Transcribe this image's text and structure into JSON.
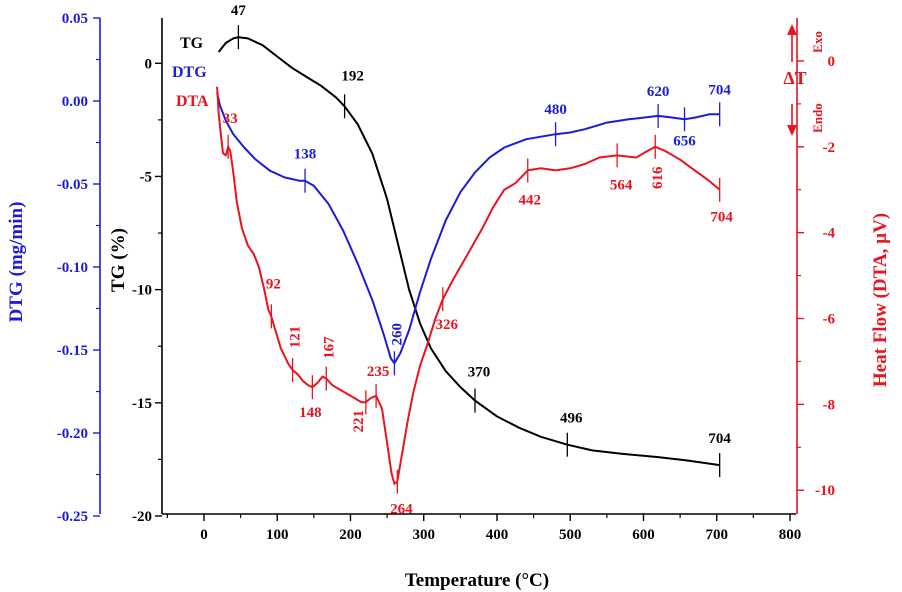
{
  "chart_data": {
    "type": "line",
    "xlabel": "Temperature (°C)",
    "xlim": [
      -60,
      800
    ],
    "xticks": [
      0,
      100,
      200,
      300,
      400,
      500,
      600,
      700,
      800
    ],
    "axes": {
      "tg": {
        "label": "TG  (%)",
        "ylim": [
          -20,
          2
        ],
        "ticks": [
          0,
          -5,
          -10,
          -15,
          -20
        ],
        "color": "#000000"
      },
      "dtg": {
        "label": "DTG (mg/min)",
        "ylim": [
          -0.25,
          0.05
        ],
        "ticks": [
          "0.05",
          "0.00",
          "-0.05",
          "-0.10",
          "-0.15",
          "-0.20",
          "-0.25"
        ],
        "color": "#1c1cd6"
      },
      "dta": {
        "label": "Heat Flow (DTA, µV)",
        "ylim": [
          -10.6,
          1.0
        ],
        "ticks": [
          0,
          -2,
          -4,
          -6,
          -8,
          -10
        ],
        "color": "#e8141e"
      }
    },
    "exo_label": "Exo",
    "endo_label": "Endo",
    "delta_label": "ΔT",
    "series": [
      {
        "name": "TG",
        "axis": "tg",
        "color": "#000000",
        "points": [
          [
            20,
            0.5
          ],
          [
            30,
            0.9
          ],
          [
            40,
            1.1
          ],
          [
            47,
            1.15
          ],
          [
            60,
            1.1
          ],
          [
            80,
            0.8
          ],
          [
            100,
            0.3
          ],
          [
            120,
            -0.2
          ],
          [
            140,
            -0.6
          ],
          [
            160,
            -1.0
          ],
          [
            180,
            -1.5
          ],
          [
            192,
            -1.9
          ],
          [
            210,
            -2.7
          ],
          [
            230,
            -4.0
          ],
          [
            250,
            -6.0
          ],
          [
            265,
            -8.0
          ],
          [
            280,
            -10.0
          ],
          [
            295,
            -11.5
          ],
          [
            310,
            -12.6
          ],
          [
            330,
            -13.6
          ],
          [
            350,
            -14.3
          ],
          [
            370,
            -14.9
          ],
          [
            400,
            -15.6
          ],
          [
            430,
            -16.1
          ],
          [
            460,
            -16.5
          ],
          [
            496,
            -16.85
          ],
          [
            530,
            -17.1
          ],
          [
            570,
            -17.25
          ],
          [
            620,
            -17.4
          ],
          [
            660,
            -17.55
          ],
          [
            704,
            -17.75
          ]
        ]
      },
      {
        "name": "DTG",
        "axis": "dtg",
        "color": "#1c1cd6",
        "points": [
          [
            18,
            0.005
          ],
          [
            22,
            -0.003
          ],
          [
            30,
            -0.012
          ],
          [
            40,
            -0.02
          ],
          [
            55,
            -0.028
          ],
          [
            70,
            -0.035
          ],
          [
            90,
            -0.042
          ],
          [
            110,
            -0.046
          ],
          [
            130,
            -0.048
          ],
          [
            138,
            -0.048
          ],
          [
            150,
            -0.051
          ],
          [
            170,
            -0.062
          ],
          [
            190,
            -0.078
          ],
          [
            210,
            -0.098
          ],
          [
            230,
            -0.12
          ],
          [
            245,
            -0.14
          ],
          [
            255,
            -0.155
          ],
          [
            260,
            -0.158
          ],
          [
            268,
            -0.152
          ],
          [
            280,
            -0.138
          ],
          [
            295,
            -0.115
          ],
          [
            310,
            -0.095
          ],
          [
            330,
            -0.072
          ],
          [
            350,
            -0.055
          ],
          [
            370,
            -0.043
          ],
          [
            390,
            -0.034
          ],
          [
            410,
            -0.028
          ],
          [
            440,
            -0.023
          ],
          [
            480,
            -0.02
          ],
          [
            500,
            -0.019
          ],
          [
            520,
            -0.017
          ],
          [
            550,
            -0.013
          ],
          [
            580,
            -0.011
          ],
          [
            620,
            -0.009
          ],
          [
            640,
            -0.01
          ],
          [
            656,
            -0.011
          ],
          [
            670,
            -0.01
          ],
          [
            690,
            -0.008
          ],
          [
            704,
            -0.008
          ]
        ]
      },
      {
        "name": "DTA",
        "axis": "dta",
        "color": "#e8141e",
        "points": [
          [
            18,
            -0.6
          ],
          [
            20,
            -1.2
          ],
          [
            23,
            -1.7
          ],
          [
            26,
            -2.15
          ],
          [
            30,
            -2.2
          ],
          [
            33,
            -2.0
          ],
          [
            36,
            -2.1
          ],
          [
            40,
            -2.6
          ],
          [
            45,
            -3.3
          ],
          [
            52,
            -3.9
          ],
          [
            60,
            -4.3
          ],
          [
            68,
            -4.5
          ],
          [
            75,
            -4.8
          ],
          [
            82,
            -5.3
          ],
          [
            88,
            -5.8
          ],
          [
            92,
            -5.95
          ],
          [
            98,
            -6.3
          ],
          [
            105,
            -6.7
          ],
          [
            115,
            -7.05
          ],
          [
            121,
            -7.2
          ],
          [
            128,
            -7.3
          ],
          [
            135,
            -7.45
          ],
          [
            142,
            -7.55
          ],
          [
            148,
            -7.6
          ],
          [
            155,
            -7.5
          ],
          [
            162,
            -7.35
          ],
          [
            167,
            -7.4
          ],
          [
            175,
            -7.55
          ],
          [
            185,
            -7.65
          ],
          [
            195,
            -7.75
          ],
          [
            205,
            -7.85
          ],
          [
            215,
            -7.95
          ],
          [
            221,
            -7.95
          ],
          [
            228,
            -7.85
          ],
          [
            235,
            -7.8
          ],
          [
            243,
            -8.1
          ],
          [
            250,
            -8.9
          ],
          [
            256,
            -9.6
          ],
          [
            260,
            -9.85
          ],
          [
            264,
            -9.8
          ],
          [
            270,
            -9.2
          ],
          [
            278,
            -8.4
          ],
          [
            286,
            -7.7
          ],
          [
            295,
            -7.1
          ],
          [
            305,
            -6.6
          ],
          [
            316,
            -6.0
          ],
          [
            326,
            -5.55
          ],
          [
            340,
            -5.1
          ],
          [
            360,
            -4.5
          ],
          [
            380,
            -3.9
          ],
          [
            395,
            -3.4
          ],
          [
            410,
            -3.0
          ],
          [
            425,
            -2.85
          ],
          [
            442,
            -2.55
          ],
          [
            460,
            -2.5
          ],
          [
            480,
            -2.55
          ],
          [
            500,
            -2.5
          ],
          [
            520,
            -2.4
          ],
          [
            540,
            -2.25
          ],
          [
            564,
            -2.2
          ],
          [
            590,
            -2.25
          ],
          [
            605,
            -2.1
          ],
          [
            616,
            -2.0
          ],
          [
            630,
            -2.1
          ],
          [
            650,
            -2.3
          ],
          [
            670,
            -2.55
          ],
          [
            690,
            -2.8
          ],
          [
            704,
            -3.0
          ]
        ]
      }
    ],
    "annotations": [
      {
        "series": "TG",
        "x": 47,
        "y": 1.15,
        "text": "47",
        "tick": true
      },
      {
        "series": "TG",
        "x": 192,
        "y": -1.9,
        "text": "192",
        "tick": true
      },
      {
        "series": "TG",
        "x": 370,
        "y": -14.9,
        "text": "370",
        "tick": true
      },
      {
        "series": "TG",
        "x": 496,
        "y": -16.85,
        "text": "496",
        "tick": true
      },
      {
        "series": "TG",
        "x": 704,
        "y": -17.75,
        "text": "704",
        "tick": true
      },
      {
        "series": "DTG",
        "x": 138,
        "y": -0.048,
        "text": "138",
        "tick": true
      },
      {
        "series": "DTG",
        "x": 260,
        "y": -0.158,
        "text": "260",
        "tick": true
      },
      {
        "series": "DTG",
        "x": 480,
        "y": -0.02,
        "text": "480",
        "tick": true
      },
      {
        "series": "DTG",
        "x": 620,
        "y": -0.009,
        "text": "620",
        "tick": true
      },
      {
        "series": "DTG",
        "x": 656,
        "y": -0.011,
        "text": "656",
        "tick": true
      },
      {
        "series": "DTG",
        "x": 704,
        "y": -0.008,
        "text": "704",
        "tick": true
      },
      {
        "series": "DTA",
        "x": 33,
        "y": -2.0,
        "text": "33",
        "tick": true
      },
      {
        "series": "DTA",
        "x": 92,
        "y": -5.95,
        "text": "92",
        "tick": true
      },
      {
        "series": "DTA",
        "x": 121,
        "y": -7.2,
        "text": "121",
        "tick": true
      },
      {
        "series": "DTA",
        "x": 148,
        "y": -7.6,
        "text": "148",
        "tick": true
      },
      {
        "series": "DTA",
        "x": 167,
        "y": -7.4,
        "text": "167",
        "tick": true
      },
      {
        "series": "DTA",
        "x": 221,
        "y": -7.95,
        "text": "221",
        "tick": true
      },
      {
        "series": "DTA",
        "x": 235,
        "y": -7.8,
        "text": "235",
        "tick": true
      },
      {
        "series": "DTA",
        "x": 264,
        "y": -9.8,
        "text": "264",
        "tick": true
      },
      {
        "series": "DTA",
        "x": 326,
        "y": -5.55,
        "text": "326",
        "tick": true
      },
      {
        "series": "DTA",
        "x": 442,
        "y": -2.55,
        "text": "442",
        "tick": true
      },
      {
        "series": "DTA",
        "x": 564,
        "y": -2.2,
        "text": "564",
        "tick": true
      },
      {
        "series": "DTA",
        "x": 616,
        "y": -2.0,
        "text": "616",
        "tick": true
      },
      {
        "series": "DTA",
        "x": 704,
        "y": -3.0,
        "text": "704",
        "tick": true
      }
    ]
  }
}
